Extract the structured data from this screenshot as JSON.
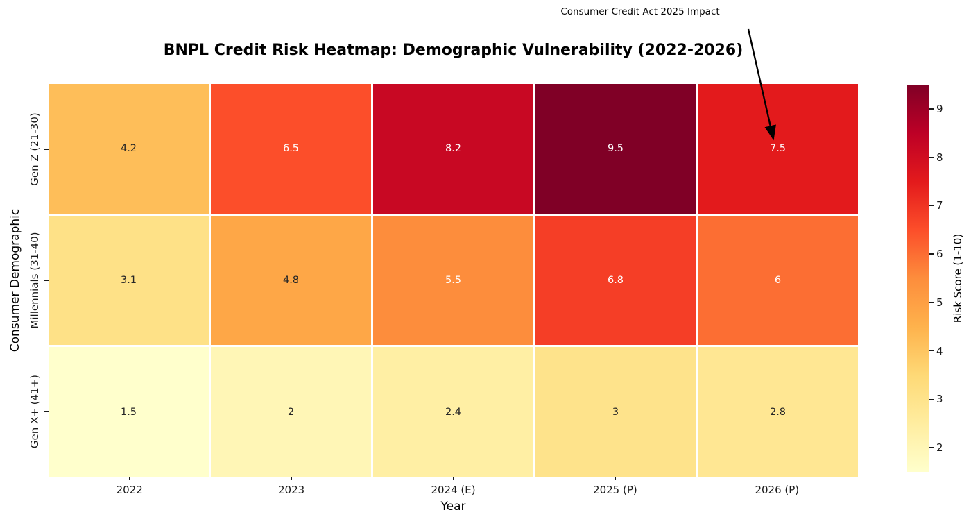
{
  "chart_data": {
    "type": "heatmap",
    "title": "BNPL Credit Risk Heatmap: Demographic Vulnerability (2022-2026)",
    "xlabel": "Year",
    "ylabel": "Consumer Demographic",
    "x_categories": [
      "2022",
      "2023",
      "2024 (E)",
      "2025 (P)",
      "2026 (P)"
    ],
    "y_categories": [
      "Gen Z (21-30)",
      "Millennials (31-40)",
      "Gen X+ (41+)"
    ],
    "values": [
      [
        4.2,
        6.5,
        8.2,
        9.5,
        7.5
      ],
      [
        3.1,
        4.8,
        5.5,
        6.8,
        6.0
      ],
      [
        1.5,
        2.0,
        2.4,
        3.0,
        2.8
      ]
    ],
    "value_labels": [
      [
        "4.2",
        "6.5",
        "8.2",
        "9.5",
        "7.5"
      ],
      [
        "3.1",
        "4.8",
        "5.5",
        "6.8",
        "6"
      ],
      [
        "1.5",
        "2",
        "2.4",
        "3",
        "2.8"
      ]
    ],
    "colormap": "YlOrRd",
    "vmin": 1.5,
    "vmax": 9.5,
    "colorbar_label": "Risk Score (1-10)",
    "colorbar_ticks": [
      2,
      3,
      4,
      5,
      6,
      7,
      8,
      9
    ],
    "annotation": {
      "text": "Consumer Credit Act 2025 Impact",
      "points_to_cell": {
        "row": "Gen Z (21-30)",
        "column": "2026 (P)",
        "value": 7.5
      }
    },
    "grid": false,
    "legend_position": "right-colorbar"
  },
  "heatmap": {
    "cell_colors": [
      [
        "#FEBE59",
        "#FC4E2A",
        "#C80823",
        "#800026",
        "#E31A1C"
      ],
      [
        "#FEE187",
        "#FEA747",
        "#FD8D3C",
        "#F53E26",
        "#FC6E33"
      ],
      [
        "#FFFFCC",
        "#FFF6B6",
        "#FFEFA4",
        "#FEE38B",
        "#FFE793"
      ]
    ],
    "cell_text_colors": [
      [
        "dark",
        "white",
        "white",
        "white",
        "white"
      ],
      [
        "dark",
        "dark",
        "white",
        "white",
        "white"
      ],
      [
        "dark",
        "dark",
        "dark",
        "dark",
        "dark"
      ]
    ]
  },
  "style": {
    "dark_text": "#262626",
    "white_text": "#ffffff",
    "arrow_color": "#000000",
    "colormap_stops": [
      "#ffffcc",
      "#ffeda0",
      "#fed976",
      "#feb24c",
      "#fd8d3c",
      "#fc4e2a",
      "#e31a1c",
      "#bd0026",
      "#800026"
    ]
  }
}
